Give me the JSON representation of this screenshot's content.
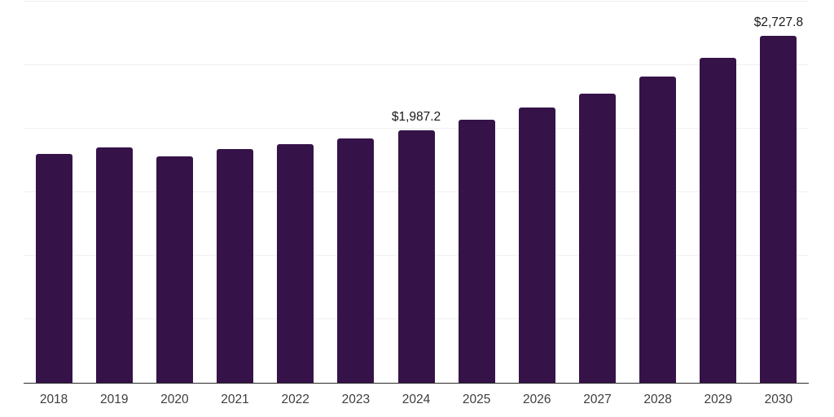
{
  "chart_data": {
    "type": "bar",
    "title": "",
    "xlabel": "",
    "ylabel": "",
    "categories": [
      "2018",
      "2019",
      "2020",
      "2021",
      "2022",
      "2023",
      "2024",
      "2025",
      "2026",
      "2027",
      "2028",
      "2029",
      "2030"
    ],
    "values": [
      1802,
      1853,
      1784,
      1840,
      1879,
      1924,
      1987.2,
      2071,
      2167,
      2276,
      2412,
      2557,
      2727.8
    ],
    "ylim": [
      0,
      3000
    ],
    "gridline_step": 500,
    "grid": true,
    "legend": "none",
    "annotations": [
      {
        "category": "2024",
        "text": "$1,987.2"
      },
      {
        "category": "2030",
        "text": "$2,727.8"
      }
    ],
    "colors": {
      "bar": "#351349",
      "axis_line": "#2b2b2b",
      "gridline": "#f0f0f0",
      "tick_label": "#3d3d3d",
      "data_label": "#1a1a1a",
      "background": "#ffffff"
    }
  }
}
